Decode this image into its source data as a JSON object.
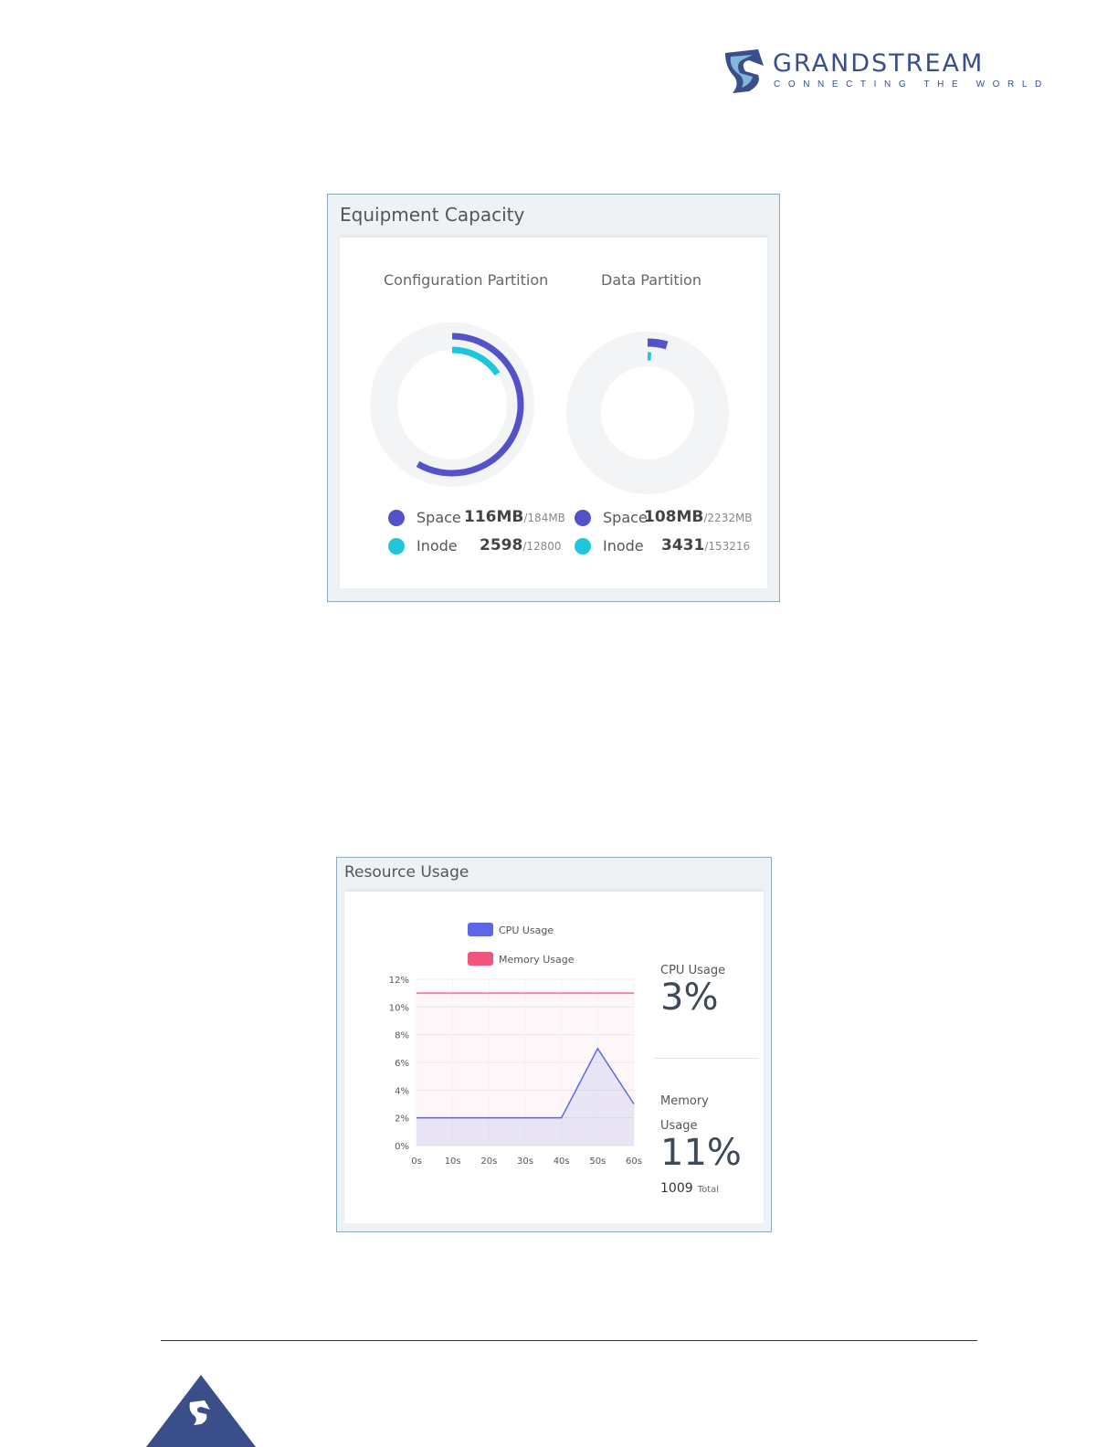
{
  "brand": {
    "name": "GRANDSTREAM",
    "tagline": "CONNECTING THE WORLD",
    "colors": {
      "primary": "#3a4f8a"
    }
  },
  "equipment_capacity": {
    "title": "Equipment Capacity",
    "partitions": [
      {
        "title": "Configuration Partition",
        "space": {
          "label": "Space",
          "used": "116MB",
          "total": "/184MB"
        },
        "inode": {
          "label": "Inode",
          "used": "2598",
          "total": "/12800"
        }
      },
      {
        "title": "Data Partition",
        "space": {
          "label": "Space",
          "used": "108MB",
          "total": "/2232MB"
        },
        "inode": {
          "label": "Inode",
          "used": "3431",
          "total": "/153216"
        }
      }
    ],
    "colors": {
      "space": "#5352c8",
      "inode": "#1ec6dc",
      "track": "#f2f4f6"
    }
  },
  "resource_usage": {
    "title": "Resource Usage",
    "cpu": {
      "label": "CPU Usage",
      "value": "3%"
    },
    "memory": {
      "label_line1": "Memory",
      "label_line2": "Usage",
      "value": "11%",
      "total_value": "1009",
      "total_label": "Total"
    }
  },
  "chart_data": {
    "type": "line",
    "x": [
      "0s",
      "10s",
      "20s",
      "30s",
      "40s",
      "50s",
      "60s"
    ],
    "x_values": [
      0,
      10,
      20,
      30,
      40,
      50,
      60
    ],
    "yticks": [
      "0%",
      "2%",
      "4%",
      "6%",
      "8%",
      "10%",
      "12%"
    ],
    "ylim": [
      0,
      12
    ],
    "xlim": [
      0,
      60
    ],
    "grid": true,
    "legend_position": "top",
    "series": [
      {
        "name": "CPU Usage",
        "color": "#5b67e6",
        "values": [
          2,
          2,
          2,
          2,
          2,
          7,
          3
        ]
      },
      {
        "name": "Memory Usage",
        "color": "#f0567c",
        "values": [
          11,
          11,
          11,
          11,
          11,
          11,
          11
        ]
      }
    ]
  }
}
